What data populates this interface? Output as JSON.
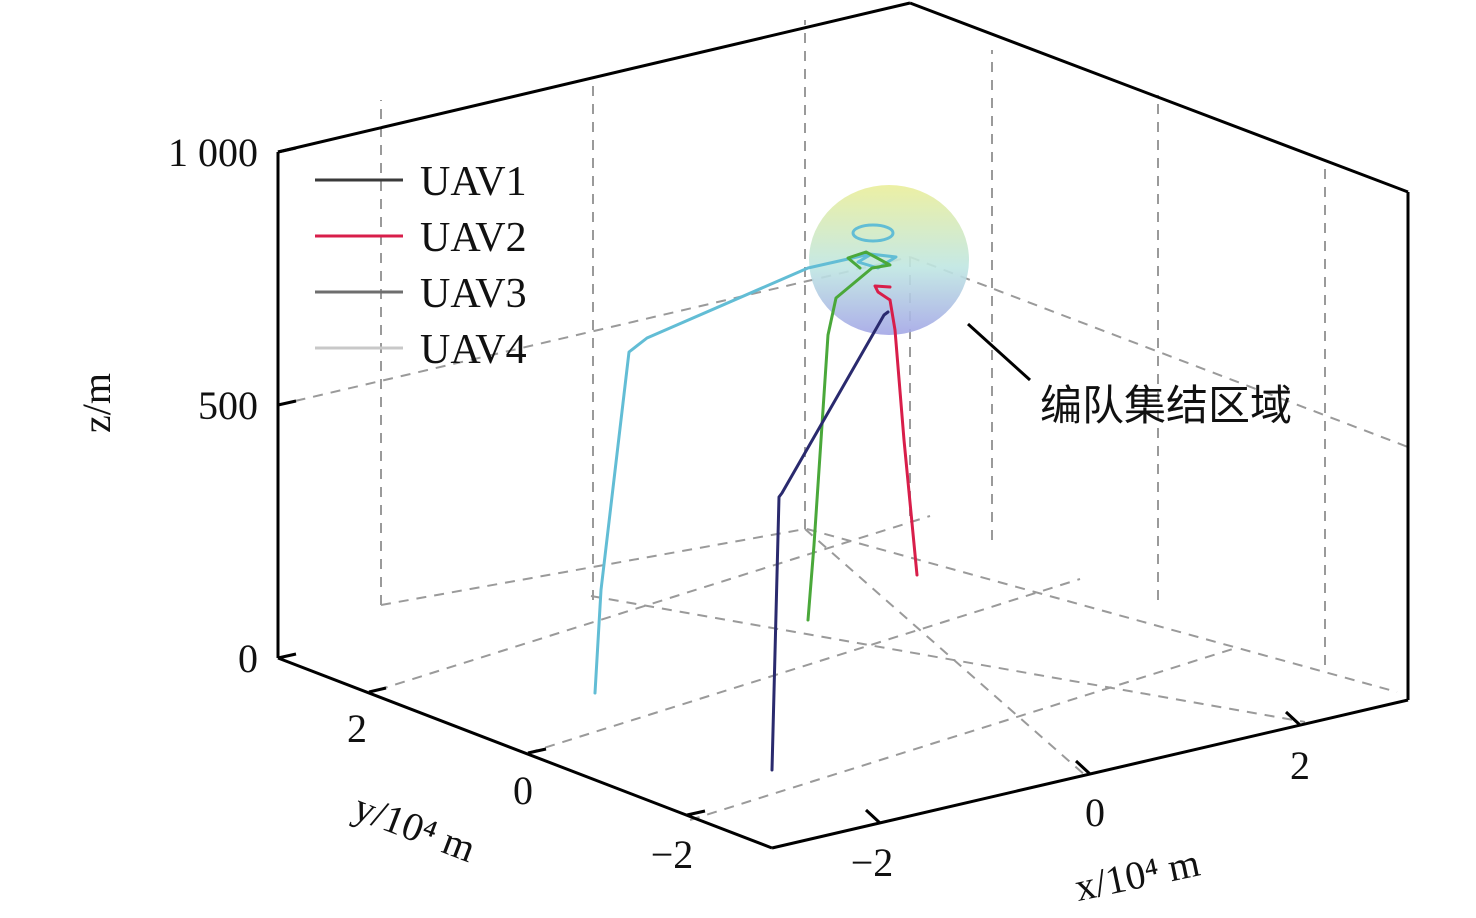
{
  "chart_data": {
    "type": "line",
    "projection": "3d",
    "xlabel": "x/10⁴ m",
    "ylabel": "y/10⁴ m",
    "zlabel": "z/m",
    "xlim": [
      -3,
      3
    ],
    "ylim": [
      -3,
      3
    ],
    "zlim": [
      0,
      1000
    ],
    "x_ticks": [
      -2,
      0,
      2
    ],
    "x_tick_labels": [
      "−2",
      "0",
      "2"
    ],
    "y_ticks": [
      -2,
      0,
      2
    ],
    "y_tick_labels": [
      "−2",
      "0",
      "2"
    ],
    "z_ticks": [
      0,
      500,
      1000
    ],
    "z_tick_labels": [
      "0",
      "500",
      "1 000"
    ],
    "grid": true,
    "legend_position": "top-left",
    "series": [
      {
        "name": "UAV1",
        "color": "#2a2a6e",
        "x": [
          -2.1,
          -2.1,
          -1.85,
          -0.45,
          -0.2,
          -0.2
        ],
        "y": [
          -1.6,
          -1.6,
          -0.4,
          -0.2,
          0.05,
          0.05
        ],
        "z": [
          0,
          300,
          370,
          730,
          760,
          760
        ]
      },
      {
        "name": "UAV2",
        "color": "#d81e4a",
        "x": [
          1.0,
          0.5,
          0.1,
          0.1,
          -0.05,
          -0.05,
          0.1
        ],
        "y": [
          1.0,
          0.75,
          0.45,
          0.2,
          0.05,
          0.2,
          0.2
        ],
        "z": [
          0,
          320,
          700,
          790,
          790,
          780,
          785
        ]
      },
      {
        "name": "UAV3",
        "color": "#4aa83a",
        "x": [
          -1.0,
          -1.0,
          -0.3,
          0.3,
          0.2,
          -0.3,
          -0.4
        ],
        "y": [
          0.7,
          0.7,
          0.6,
          0.4,
          0.15,
          0.15,
          0.3
        ],
        "z": [
          0,
          330,
          760,
          830,
          850,
          850,
          840
        ]
      },
      {
        "name": "UAV4",
        "color": "#62bdd5",
        "x": [
          -2.2,
          -2.2,
          -1.6,
          -0.2,
          0.5,
          -0.4,
          -0.2
        ],
        "y": [
          1.8,
          1.8,
          2.0,
          0.3,
          0.2,
          0.35,
          0.3
        ],
        "z": [
          0,
          400,
          620,
          860,
          900,
          900,
          900
        ]
      }
    ],
    "legend_colors": [
      "#3a3a3a",
      "#d81e4a",
      "#6e6e6e",
      "#c8c8c8"
    ],
    "region": {
      "label": "编队集结区域",
      "center": [
        0,
        0.3,
        820
      ],
      "gradient_top": "#eaee9a",
      "gradient_mid": "#bfe6e2",
      "gradient_bottom": "#a3a6e6"
    }
  }
}
